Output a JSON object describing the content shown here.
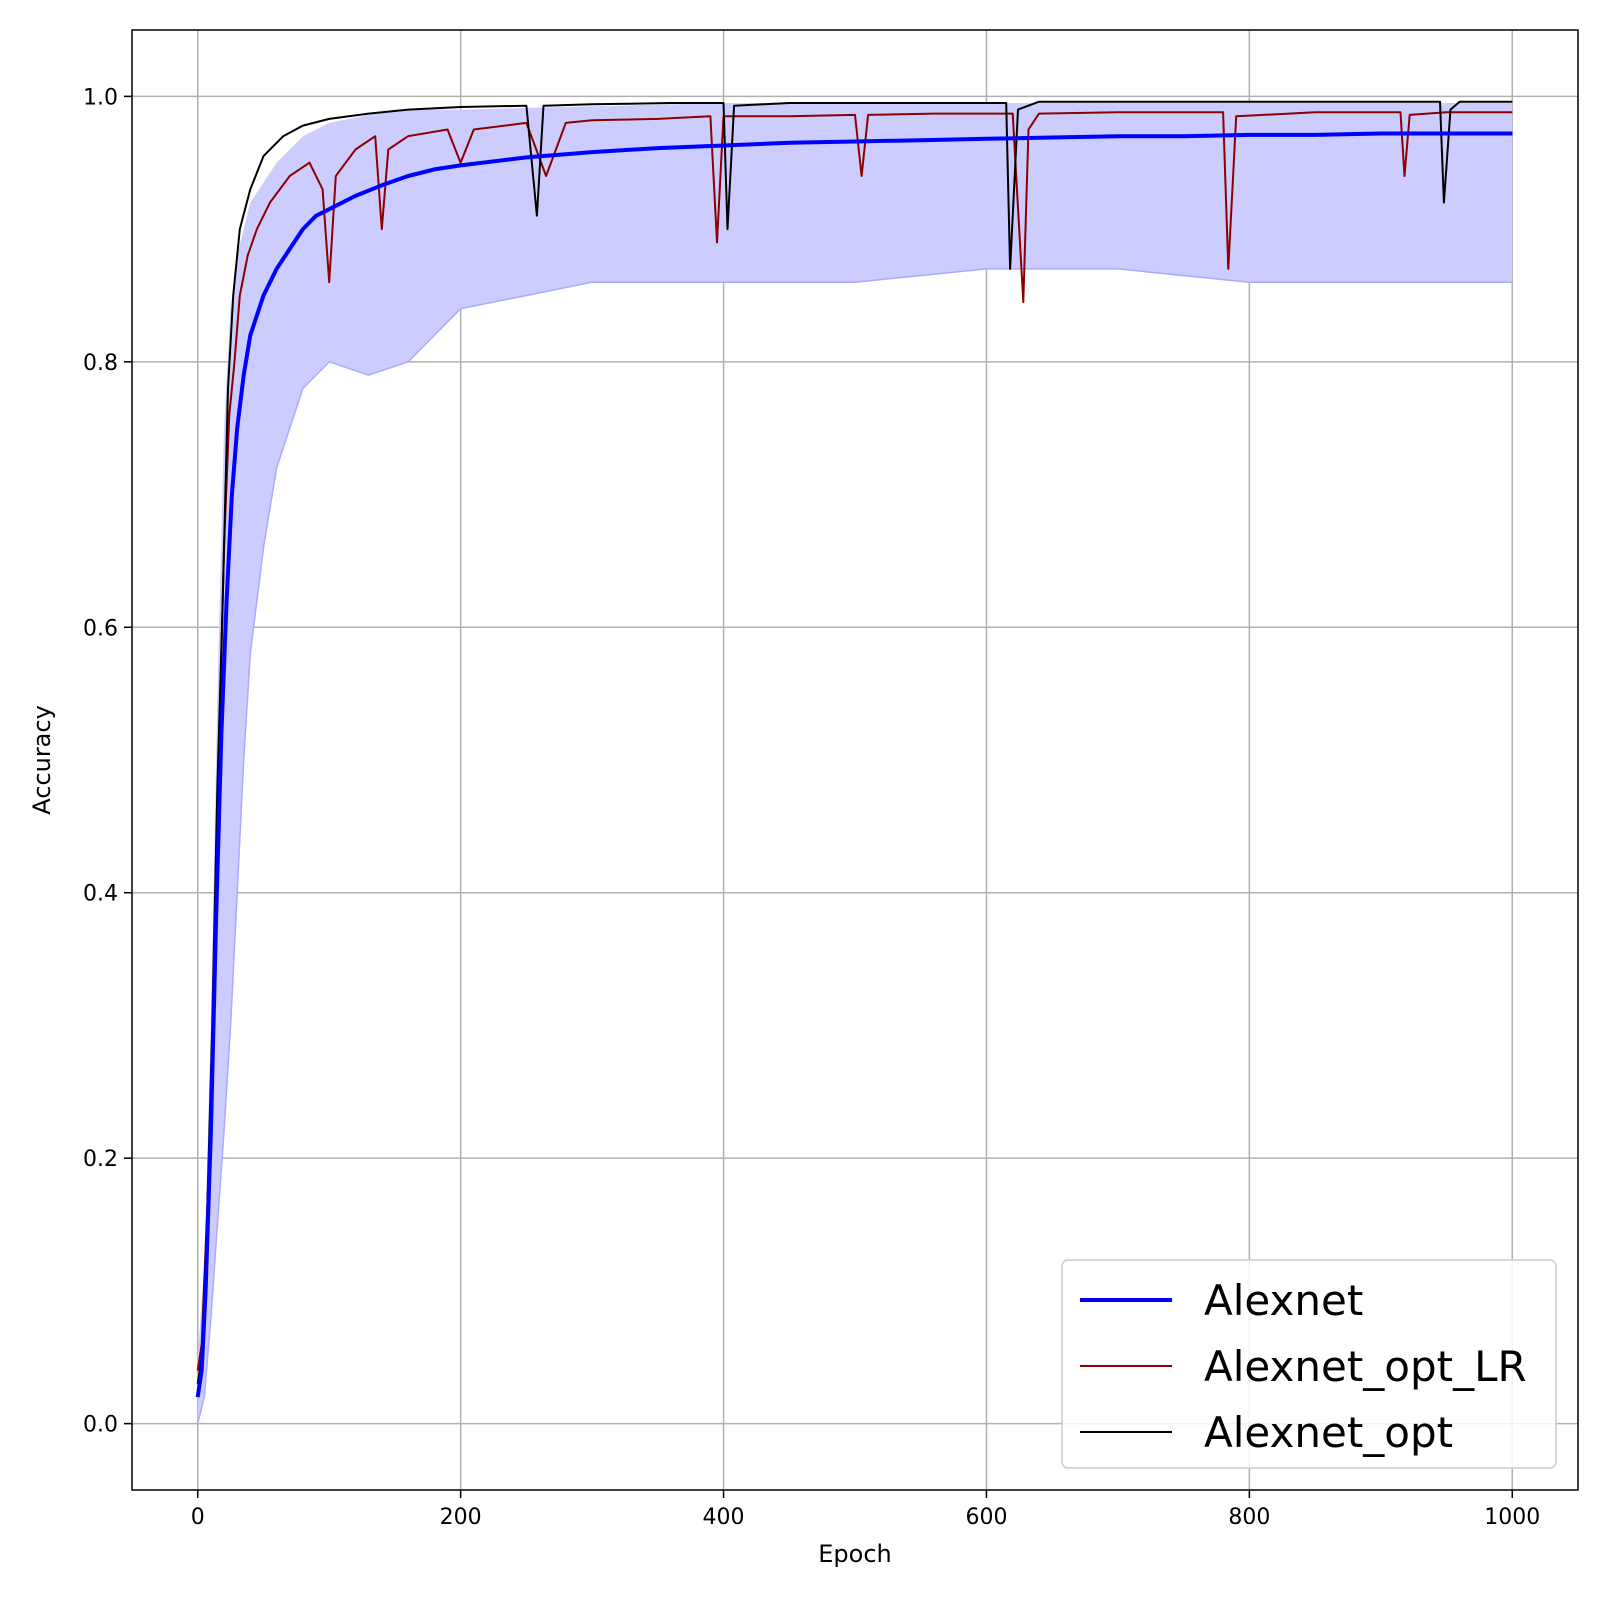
{
  "chart_data": {
    "type": "line",
    "xlabel": "Epoch",
    "ylabel": "Accuracy",
    "xlim": [
      -50,
      1050
    ],
    "ylim": [
      -0.05,
      1.05
    ],
    "xticks": [
      0,
      200,
      400,
      600,
      800,
      1000
    ],
    "yticks": [
      0.0,
      0.2,
      0.4,
      0.6,
      0.8,
      1.0
    ],
    "xtick_labels": [
      "0",
      "200",
      "400",
      "600",
      "800",
      "1000"
    ],
    "ytick_labels": [
      "0.0",
      "0.2",
      "0.4",
      "0.6",
      "0.8",
      "1.0"
    ],
    "grid": true,
    "legend_position": "bottom-right",
    "band": {
      "series": "Alexnet",
      "color": "#ccccff",
      "upper": [
        [
          0,
          0.05
        ],
        [
          5,
          0.12
        ],
        [
          10,
          0.3
        ],
        [
          15,
          0.55
        ],
        [
          20,
          0.75
        ],
        [
          25,
          0.84
        ],
        [
          30,
          0.88
        ],
        [
          40,
          0.92
        ],
        [
          60,
          0.95
        ],
        [
          80,
          0.97
        ],
        [
          100,
          0.98
        ],
        [
          150,
          0.99
        ],
        [
          200,
          0.99
        ],
        [
          400,
          0.995
        ],
        [
          600,
          0.995
        ],
        [
          800,
          0.995
        ],
        [
          1000,
          0.995
        ]
      ],
      "lower": [
        [
          0,
          0.0
        ],
        [
          5,
          0.02
        ],
        [
          10,
          0.08
        ],
        [
          15,
          0.15
        ],
        [
          20,
          0.22
        ],
        [
          25,
          0.3
        ],
        [
          30,
          0.4
        ],
        [
          35,
          0.5
        ],
        [
          40,
          0.58
        ],
        [
          50,
          0.66
        ],
        [
          60,
          0.72
        ],
        [
          80,
          0.78
        ],
        [
          100,
          0.8
        ],
        [
          130,
          0.79
        ],
        [
          160,
          0.8
        ],
        [
          200,
          0.84
        ],
        [
          250,
          0.85
        ],
        [
          300,
          0.86
        ],
        [
          400,
          0.86
        ],
        [
          500,
          0.86
        ],
        [
          600,
          0.87
        ],
        [
          700,
          0.87
        ],
        [
          800,
          0.86
        ],
        [
          900,
          0.86
        ],
        [
          1000,
          0.86
        ]
      ]
    },
    "series": [
      {
        "name": "Alexnet",
        "color": "#0000ff",
        "points": [
          [
            0,
            0.02
          ],
          [
            3,
            0.04
          ],
          [
            6,
            0.1
          ],
          [
            10,
            0.22
          ],
          [
            14,
            0.38
          ],
          [
            18,
            0.52
          ],
          [
            22,
            0.62
          ],
          [
            26,
            0.7
          ],
          [
            30,
            0.75
          ],
          [
            35,
            0.79
          ],
          [
            40,
            0.82
          ],
          [
            50,
            0.85
          ],
          [
            60,
            0.87
          ],
          [
            70,
            0.885
          ],
          [
            80,
            0.9
          ],
          [
            90,
            0.91
          ],
          [
            100,
            0.915
          ],
          [
            120,
            0.925
          ],
          [
            140,
            0.933
          ],
          [
            160,
            0.94
          ],
          [
            180,
            0.945
          ],
          [
            200,
            0.948
          ],
          [
            250,
            0.954
          ],
          [
            300,
            0.958
          ],
          [
            350,
            0.961
          ],
          [
            400,
            0.963
          ],
          [
            450,
            0.965
          ],
          [
            500,
            0.966
          ],
          [
            550,
            0.967
          ],
          [
            600,
            0.968
          ],
          [
            650,
            0.969
          ],
          [
            700,
            0.97
          ],
          [
            750,
            0.97
          ],
          [
            800,
            0.971
          ],
          [
            850,
            0.971
          ],
          [
            900,
            0.972
          ],
          [
            950,
            0.972
          ],
          [
            1000,
            0.972
          ]
        ]
      },
      {
        "name": "Alexnet_opt_LR",
        "color": "#8b0000",
        "points": [
          [
            0,
            0.04
          ],
          [
            3,
            0.06
          ],
          [
            8,
            0.18
          ],
          [
            12,
            0.32
          ],
          [
            16,
            0.5
          ],
          [
            20,
            0.66
          ],
          [
            24,
            0.76
          ],
          [
            28,
            0.8
          ],
          [
            32,
            0.85
          ],
          [
            38,
            0.88
          ],
          [
            45,
            0.9
          ],
          [
            55,
            0.92
          ],
          [
            70,
            0.94
          ],
          [
            85,
            0.95
          ],
          [
            95,
            0.93
          ],
          [
            100,
            0.86
          ],
          [
            105,
            0.94
          ],
          [
            120,
            0.96
          ],
          [
            135,
            0.97
          ],
          [
            140,
            0.9
          ],
          [
            145,
            0.96
          ],
          [
            160,
            0.97
          ],
          [
            190,
            0.975
          ],
          [
            200,
            0.95
          ],
          [
            210,
            0.975
          ],
          [
            250,
            0.98
          ],
          [
            265,
            0.94
          ],
          [
            280,
            0.98
          ],
          [
            300,
            0.982
          ],
          [
            350,
            0.983
          ],
          [
            390,
            0.985
          ],
          [
            395,
            0.89
          ],
          [
            400,
            0.985
          ],
          [
            450,
            0.985
          ],
          [
            500,
            0.986
          ],
          [
            505,
            0.94
          ],
          [
            510,
            0.986
          ],
          [
            560,
            0.987
          ],
          [
            620,
            0.987
          ],
          [
            628,
            0.845
          ],
          [
            632,
            0.975
          ],
          [
            640,
            0.987
          ],
          [
            700,
            0.988
          ],
          [
            780,
            0.988
          ],
          [
            784,
            0.87
          ],
          [
            790,
            0.985
          ],
          [
            850,
            0.988
          ],
          [
            915,
            0.988
          ],
          [
            918,
            0.94
          ],
          [
            922,
            0.986
          ],
          [
            950,
            0.988
          ],
          [
            1000,
            0.988
          ]
        ]
      },
      {
        "name": "Alexnet_opt",
        "color": "#000000",
        "points": [
          [
            0,
            0.03
          ],
          [
            3,
            0.05
          ],
          [
            7,
            0.15
          ],
          [
            11,
            0.3
          ],
          [
            15,
            0.48
          ],
          [
            19,
            0.62
          ],
          [
            23,
            0.78
          ],
          [
            27,
            0.85
          ],
          [
            32,
            0.9
          ],
          [
            40,
            0.93
          ],
          [
            50,
            0.955
          ],
          [
            65,
            0.97
          ],
          [
            80,
            0.978
          ],
          [
            100,
            0.983
          ],
          [
            130,
            0.987
          ],
          [
            160,
            0.99
          ],
          [
            200,
            0.992
          ],
          [
            250,
            0.993
          ],
          [
            258,
            0.91
          ],
          [
            263,
            0.993
          ],
          [
            300,
            0.994
          ],
          [
            360,
            0.995
          ],
          [
            400,
            0.995
          ],
          [
            403,
            0.9
          ],
          [
            408,
            0.993
          ],
          [
            450,
            0.995
          ],
          [
            500,
            0.995
          ],
          [
            560,
            0.995
          ],
          [
            615,
            0.995
          ],
          [
            618,
            0.87
          ],
          [
            624,
            0.99
          ],
          [
            640,
            0.996
          ],
          [
            700,
            0.996
          ],
          [
            800,
            0.996
          ],
          [
            900,
            0.996
          ],
          [
            945,
            0.996
          ],
          [
            948,
            0.92
          ],
          [
            953,
            0.99
          ],
          [
            960,
            0.996
          ],
          [
            1000,
            0.996
          ]
        ]
      }
    ]
  }
}
